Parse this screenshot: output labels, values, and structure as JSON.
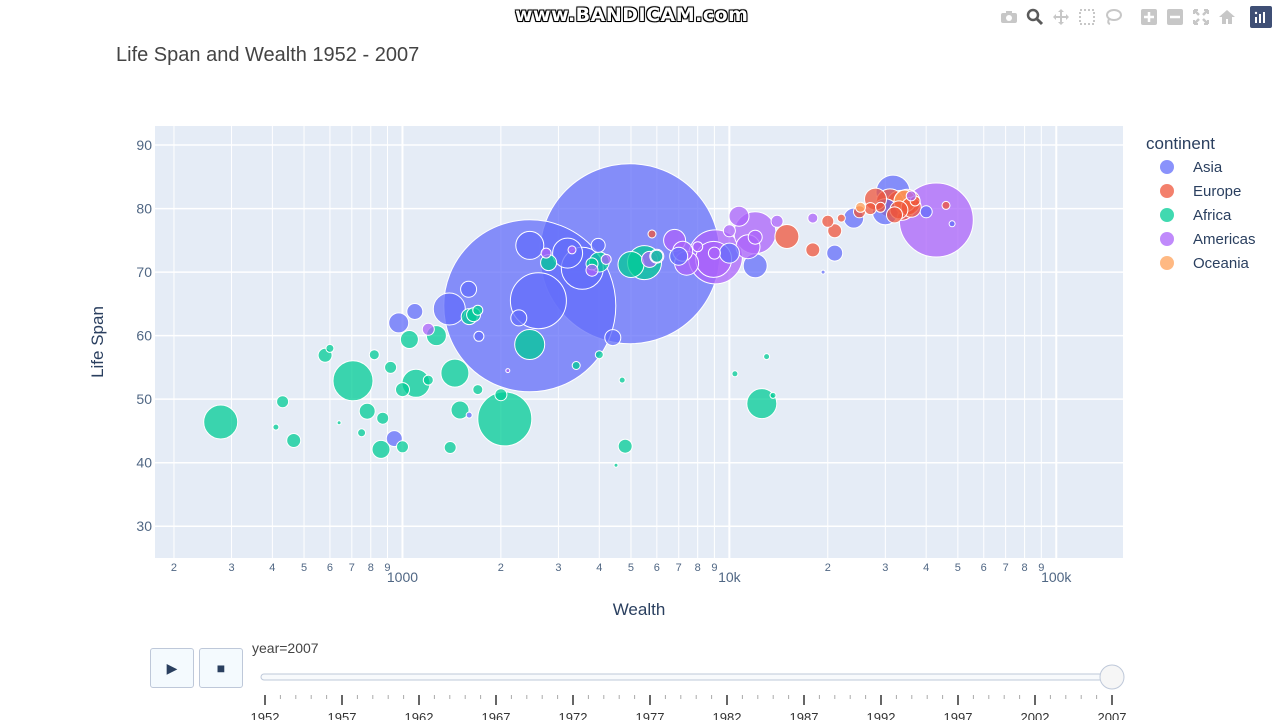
{
  "watermark": "www.BANDICAM.com",
  "title": "Life Span and Wealth 1952 - 2007",
  "modebar": {
    "icons": [
      "camera-icon",
      "zoom-icon",
      "pan-icon",
      "box-select-icon",
      "lasso-icon",
      "zoom-in-icon",
      "zoom-out-icon",
      "autoscale-icon",
      "reset-axes-icon",
      "plotly-logo-icon"
    ]
  },
  "legend": {
    "title": "continent",
    "items": [
      {
        "label": "Asia",
        "color": "#636efa"
      },
      {
        "label": "Europe",
        "color": "#ef553b"
      },
      {
        "label": "Africa",
        "color": "#00cc96"
      },
      {
        "label": "Americas",
        "color": "#ab63fa"
      },
      {
        "label": "Oceania",
        "color": "#ffa15a"
      }
    ]
  },
  "slider": {
    "current_label": "year=2007",
    "steps": [
      "1952",
      "1957",
      "1962",
      "1967",
      "1972",
      "1977",
      "1982",
      "1987",
      "1992",
      "1997",
      "2002",
      "2007"
    ],
    "selected_index": 11
  },
  "controls": {
    "play_symbol": "▶",
    "stop_symbol": "■"
  },
  "chart_data": {
    "type": "scatter",
    "title": "Life Span and Wealth 1952 - 2007",
    "xlabel": "Wealth",
    "ylabel": "Life Span",
    "x_scale": "log",
    "xlim": [
      175,
      160000
    ],
    "ylim": [
      25,
      93
    ],
    "grid": true,
    "legend_position": "top-right",
    "y_ticks": [
      "30",
      "40",
      "50",
      "60",
      "70",
      "80",
      "90"
    ],
    "x_ticks": [
      {
        "value": 200,
        "label": "2"
      },
      {
        "value": 300,
        "label": "3"
      },
      {
        "value": 400,
        "label": "4"
      },
      {
        "value": 500,
        "label": "5"
      },
      {
        "value": 600,
        "label": "6"
      },
      {
        "value": 700,
        "label": "7"
      },
      {
        "value": 800,
        "label": "8"
      },
      {
        "value": 900,
        "label": "9"
      },
      {
        "value": 1000,
        "label": "1000"
      },
      {
        "value": 2000,
        "label": "2"
      },
      {
        "value": 3000,
        "label": "3"
      },
      {
        "value": 4000,
        "label": "4"
      },
      {
        "value": 5000,
        "label": "5"
      },
      {
        "value": 6000,
        "label": "6"
      },
      {
        "value": 7000,
        "label": "7"
      },
      {
        "value": 8000,
        "label": "8"
      },
      {
        "value": 9000,
        "label": "9"
      },
      {
        "value": 10000,
        "label": "10k"
      },
      {
        "value": 20000,
        "label": "2"
      },
      {
        "value": 30000,
        "label": "3"
      },
      {
        "value": 40000,
        "label": "4"
      },
      {
        "value": 50000,
        "label": "5"
      },
      {
        "value": 60000,
        "label": "6"
      },
      {
        "value": 70000,
        "label": "7"
      },
      {
        "value": 80000,
        "label": "8"
      },
      {
        "value": 90000,
        "label": "9"
      },
      {
        "value": 100000,
        "label": "100k"
      }
    ],
    "series": [
      {
        "name": "Asia",
        "points": [
          [
            4959,
            72.9,
            90
          ],
          [
            2452,
            64.7,
            86
          ],
          [
            2605,
            65.5,
            28
          ],
          [
            3548,
            70.6,
            21
          ],
          [
            2452,
            74.2,
            14
          ],
          [
            3200,
            73.0,
            15
          ],
          [
            1391,
            64.2,
            16
          ],
          [
            974,
            62.0,
            10
          ],
          [
            1091,
            63.8,
            8
          ],
          [
            1593,
            67.3,
            8
          ],
          [
            3970,
            74.2,
            7
          ],
          [
            4400,
            59.7,
            8
          ],
          [
            2270,
            62.8,
            8
          ],
          [
            31656,
            82.6,
            17
          ],
          [
            30000,
            79.5,
            13
          ],
          [
            12000,
            71.0,
            12
          ],
          [
            24000,
            78.5,
            10
          ],
          [
            10000,
            73.0,
            10
          ],
          [
            21000,
            73.0,
            8
          ],
          [
            944,
            43.8,
            8
          ],
          [
            7000,
            72.5,
            9
          ],
          [
            40000,
            79.5,
            6
          ],
          [
            48000,
            77.6,
            3
          ],
          [
            19350,
            70.0,
            2
          ],
          [
            1713,
            59.9,
            5
          ],
          [
            1600,
            47.5,
            3
          ]
        ]
      },
      {
        "name": "Europe",
        "points": [
          [
            31000,
            80.9,
            14
          ],
          [
            33500,
            80.5,
            15
          ],
          [
            35000,
            81.0,
            13
          ],
          [
            28000,
            81.5,
            11
          ],
          [
            15000,
            75.6,
            12
          ],
          [
            18000,
            73.5,
            7
          ],
          [
            20000,
            78.0,
            6
          ],
          [
            21000,
            76.5,
            7
          ],
          [
            25000,
            79.5,
            6
          ],
          [
            27000,
            80.0,
            6
          ],
          [
            32000,
            79.0,
            8
          ],
          [
            36000,
            80.2,
            10
          ],
          [
            46000,
            80.5,
            4
          ],
          [
            5800,
            76.0,
            4
          ],
          [
            22000,
            78.5,
            4
          ],
          [
            29000,
            80.2,
            5
          ],
          [
            37000,
            81.2,
            5
          ],
          [
            33000,
            79.8,
            9
          ]
        ]
      },
      {
        "name": "Africa",
        "points": [
          [
            278,
            46.4,
            17
          ],
          [
            2056,
            46.9,
            27
          ],
          [
            706,
            52.9,
            20
          ],
          [
            1447,
            54.1,
            14
          ],
          [
            1100,
            52.5,
            14
          ],
          [
            12570,
            49.3,
            15
          ],
          [
            5500,
            71.5,
            17
          ],
          [
            5000,
            71.2,
            13
          ],
          [
            4000,
            71.6,
            10
          ],
          [
            2450,
            58.6,
            15
          ],
          [
            1270,
            60.0,
            10
          ],
          [
            1050,
            59.4,
            9
          ],
          [
            1600,
            63.0,
            8
          ],
          [
            430,
            49.6,
            6
          ],
          [
            465,
            43.5,
            7
          ],
          [
            780,
            48.1,
            8
          ],
          [
            860,
            42.1,
            9
          ],
          [
            1500,
            48.3,
            9
          ],
          [
            4800,
            42.6,
            7
          ],
          [
            1000,
            42.5,
            6
          ],
          [
            1400,
            42.4,
            6
          ],
          [
            2000,
            50.7,
            6
          ],
          [
            1700,
            51.5,
            5
          ],
          [
            6000,
            72.5,
            6
          ],
          [
            3800,
            71.3,
            6
          ],
          [
            870,
            47.0,
            6
          ],
          [
            580,
            56.9,
            7
          ],
          [
            2800,
            71.5,
            8
          ],
          [
            1000,
            51.5,
            7
          ],
          [
            820,
            57.0,
            5
          ],
          [
            600,
            58.0,
            4
          ],
          [
            920,
            55.0,
            6
          ],
          [
            1200,
            53.0,
            5
          ],
          [
            1700,
            64.0,
            5
          ],
          [
            1650,
            63.3,
            7
          ],
          [
            3400,
            55.3,
            4
          ],
          [
            4000,
            57.0,
            4
          ],
          [
            4700,
            53.0,
            3
          ],
          [
            13000,
            56.7,
            3
          ],
          [
            10400,
            54.0,
            3
          ],
          [
            13600,
            50.6,
            3
          ],
          [
            4500,
            39.6,
            2
          ],
          [
            640,
            46.3,
            2
          ],
          [
            410,
            45.6,
            3
          ],
          [
            750,
            44.7,
            4
          ]
        ]
      },
      {
        "name": "Americas",
        "points": [
          [
            42951,
            78.2,
            37
          ],
          [
            9065,
            72.4,
            27
          ],
          [
            11978,
            76.2,
            21
          ],
          [
            8948,
            72.0,
            18
          ],
          [
            7400,
            71.4,
            12
          ],
          [
            11400,
            74.0,
            12
          ],
          [
            6800,
            75.0,
            11
          ],
          [
            10700,
            78.8,
            10
          ],
          [
            7200,
            73.3,
            10
          ],
          [
            5700,
            72.0,
            8
          ],
          [
            1200,
            61.0,
            6
          ],
          [
            6000,
            72.5,
            7
          ],
          [
            9000,
            73.0,
            6
          ],
          [
            18000,
            78.5,
            5
          ],
          [
            12000,
            75.5,
            7
          ],
          [
            3800,
            70.3,
            6
          ],
          [
            4200,
            72.0,
            5
          ],
          [
            8000,
            74.0,
            5
          ],
          [
            10000,
            76.5,
            6
          ],
          [
            2750,
            73.0,
            5
          ],
          [
            3300,
            73.5,
            4
          ],
          [
            36000,
            82.0,
            5
          ],
          [
            14000,
            78.0,
            6
          ],
          [
            2100,
            54.5,
            2
          ]
        ]
      },
      {
        "name": "Oceania",
        "points": [
          [
            34435,
            81.2,
            11
          ],
          [
            25185,
            80.2,
            5
          ]
        ]
      }
    ]
  }
}
